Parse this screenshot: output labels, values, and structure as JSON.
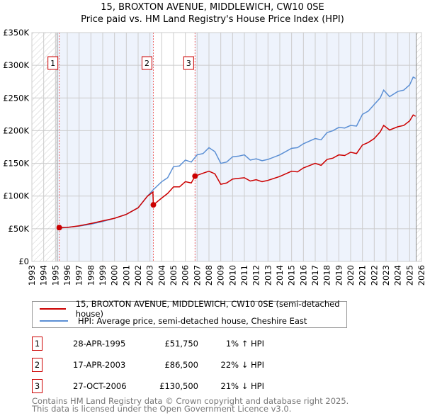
{
  "chart_data": {
    "type": "line",
    "title": "15, BROXTON AVENUE, MIDDLEWICH, CW10 0SE",
    "subtitle": "Price paid vs. HM Land Registry's House Price Index (HPI)",
    "xlim": [
      1993,
      2026
    ],
    "ylim": [
      0,
      350000
    ],
    "yticks": [
      {
        "v": 0,
        "label": "£0"
      },
      {
        "v": 50000,
        "label": "£50K"
      },
      {
        "v": 100000,
        "label": "£100K"
      },
      {
        "v": 150000,
        "label": "£150K"
      },
      {
        "v": 200000,
        "label": "£200K"
      },
      {
        "v": 250000,
        "label": "£250K"
      },
      {
        "v": 300000,
        "label": "£300K"
      },
      {
        "v": 350000,
        "label": "£350K"
      }
    ],
    "xticks": [
      "1993",
      "1994",
      "1995",
      "1996",
      "1997",
      "1998",
      "1999",
      "2000",
      "2001",
      "2002",
      "2003",
      "2004",
      "2005",
      "2006",
      "2007",
      "2008",
      "2009",
      "2010",
      "2011",
      "2012",
      "2013",
      "2014",
      "2015",
      "2016",
      "2017",
      "2018",
      "2019",
      "2020",
      "2021",
      "2022",
      "2023",
      "2024",
      "2025",
      "2026"
    ],
    "grid": true,
    "series": [
      {
        "name": "15, BROXTON AVENUE, MIDDLEWICH, CW10 0SE (semi-detached house)",
        "color": "#cc0000",
        "x": [
          1995.32,
          1996,
          1997,
          1998,
          1999,
          2000,
          2001,
          2002,
          2002.8,
          2003.25,
          2003.29,
          2004,
          2004.5,
          2005,
          2005.5,
          2006,
          2006.5,
          2006.82,
          2007.5,
          2008,
          2008.5,
          2009,
          2009.5,
          2010,
          2010.5,
          2011,
          2011.5,
          2012,
          2012.5,
          2013,
          2014,
          2015,
          2015.5,
          2016,
          2017,
          2017.5,
          2018,
          2018.5,
          2019,
          2019.5,
          2020,
          2020.5,
          2021,
          2021.5,
          2022,
          2022.5,
          2022.8,
          2023.3,
          2024,
          2024.5,
          2025,
          2025.3,
          2025.5
        ],
        "y": [
          51750,
          52000,
          54500,
          58000,
          62000,
          66000,
          72000,
          82000,
          100000,
          106000,
          86500,
          97000,
          104000,
          114000,
          114000,
          122000,
          120000,
          130500,
          135000,
          138000,
          134000,
          118000,
          120000,
          126000,
          127000,
          128000,
          123000,
          125000,
          122000,
          124000,
          130000,
          138000,
          137000,
          143000,
          150000,
          147000,
          156000,
          158000,
          163000,
          162000,
          167000,
          165000,
          178000,
          182000,
          188000,
          198000,
          208000,
          201000,
          206000,
          208000,
          215000,
          224000,
          222000
        ]
      },
      {
        "name": "HPI: Average price, semi-detached house, Cheshire East",
        "color": "#5b8fd4",
        "x": [
          1995.32,
          1996,
          1997,
          1998,
          1999,
          2000,
          2001,
          2002,
          2002.8,
          2003.3,
          2004,
          2004.5,
          2005,
          2005.5,
          2006,
          2006.5,
          2007,
          2007.5,
          2008,
          2008.5,
          2009,
          2009.5,
          2010,
          2010.5,
          2011,
          2011.5,
          2012,
          2012.5,
          2013,
          2014,
          2015,
          2015.5,
          2016,
          2017,
          2017.5,
          2018,
          2018.5,
          2019,
          2019.5,
          2020,
          2020.5,
          2021,
          2021.5,
          2022,
          2022.5,
          2022.8,
          2023.3,
          2024,
          2024.5,
          2025,
          2025.3,
          2025.5
        ],
        "y": [
          51000,
          52000,
          54000,
          57000,
          61000,
          66000,
          72000,
          82000,
          100000,
          110000,
          122000,
          128000,
          145000,
          146000,
          155000,
          152000,
          163000,
          165000,
          174000,
          168000,
          150000,
          152000,
          160000,
          161000,
          163000,
          155000,
          157000,
          154000,
          156000,
          163000,
          173000,
          174000,
          180000,
          188000,
          186000,
          197000,
          200000,
          205000,
          204000,
          208000,
          207000,
          225000,
          230000,
          240000,
          250000,
          262000,
          252000,
          260000,
          262000,
          270000,
          282000,
          280000
        ]
      }
    ],
    "sales": [
      {
        "n": "1",
        "x": 1995.32,
        "date": "28-APR-1995",
        "price": "£51,750",
        "value": 51750,
        "hpi": "1% ↑ HPI"
      },
      {
        "n": "2",
        "x": 2003.29,
        "date": "17-APR-2003",
        "price": "£86,500",
        "value": 86500,
        "hpi": "22% ↓ HPI"
      },
      {
        "n": "3",
        "x": 2006.82,
        "date": "27-OCT-2006",
        "price": "£130,500",
        "value": 130500,
        "hpi": "21% ↓ HPI"
      }
    ],
    "data_end": 2025.55
  },
  "footer": [
    "Contains HM Land Registry data © Crown copyright and database right 2025.",
    "This data is licensed under the Open Government Licence v3.0."
  ]
}
